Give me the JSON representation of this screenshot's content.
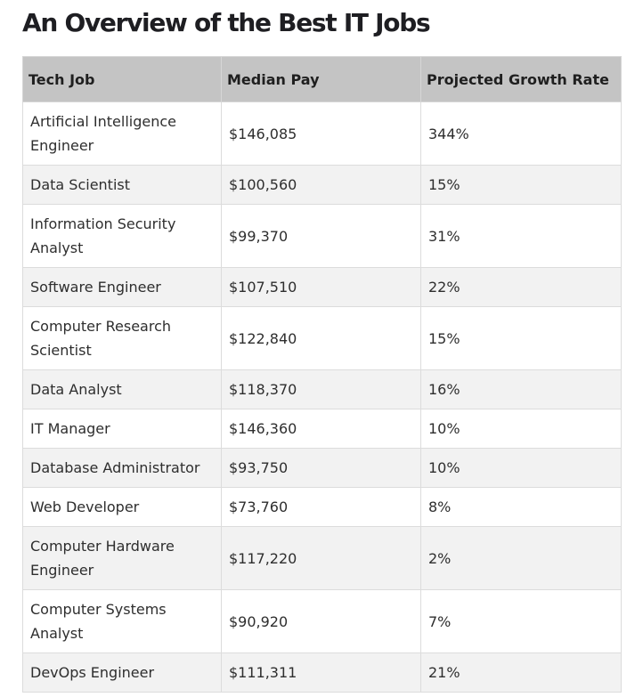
{
  "title": "An Overview of the Best IT Jobs",
  "table": {
    "headers": [
      "Tech Job",
      "Median Pay",
      "Projected Growth Rate"
    ],
    "rows": [
      {
        "job": "Artificial Intelligence Engineer",
        "pay": "$146,085",
        "growth": "344%"
      },
      {
        "job": "Data Scientist",
        "pay": "$100,560",
        "growth": "15%"
      },
      {
        "job": "Information Security Analyst",
        "pay": "$99,370",
        "growth": "31%"
      },
      {
        "job": "Software Engineer",
        "pay": "$107,510",
        "growth": "22%"
      },
      {
        "job": "Computer Research Scientist",
        "pay": "$122,840",
        "growth": "15%"
      },
      {
        "job": "Data Analyst",
        "pay": "$118,370",
        "growth": "16%"
      },
      {
        "job": "IT Manager",
        "pay": "$146,360",
        "growth": "10%"
      },
      {
        "job": "Database Administrator",
        "pay": "$93,750",
        "growth": "10%"
      },
      {
        "job": "Web Developer",
        "pay": "$73,760",
        "growth": "8%"
      },
      {
        "job": "Computer Hardware Engineer",
        "pay": "$117,220",
        "growth": "2%"
      },
      {
        "job": "Computer Systems Analyst",
        "pay": "$90,920",
        "growth": "7%"
      },
      {
        "job": "DevOps Engineer",
        "pay": "$111,311",
        "growth": "21%"
      }
    ]
  }
}
